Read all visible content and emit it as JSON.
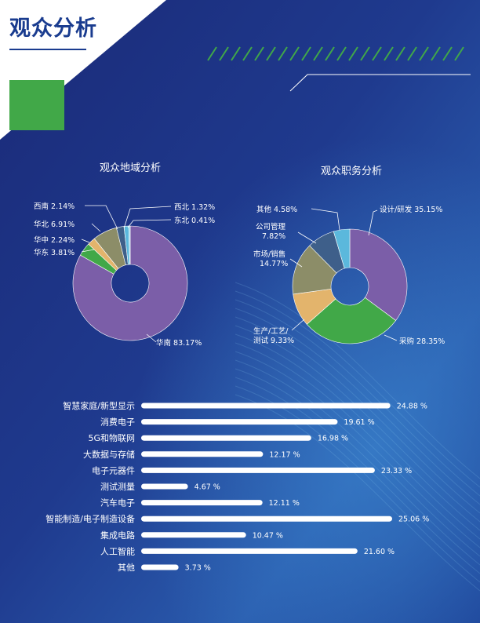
{
  "page_title": "观众分析",
  "colors": {
    "panel_bg": "#1c2d7e",
    "panel_bg_light": "#2b53a6",
    "accent_green": "#41a848",
    "title_blue": "#1a3c8f",
    "bar_fill": "#ffffff",
    "text_light": "#ffffff"
  },
  "chart_data": [
    {
      "type": "pie",
      "title": "观众地域分析",
      "slices": [
        {
          "label": "华南",
          "value": 83.17,
          "display": "83.17%",
          "color": "#7b5ea8"
        },
        {
          "label": "华东",
          "value": 3.81,
          "display": "3.81%",
          "color": "#41a848"
        },
        {
          "label": "华中",
          "value": 2.24,
          "display": "2.24%",
          "color": "#e3b46c"
        },
        {
          "label": "华北",
          "value": 6.91,
          "display": "6.91%",
          "color": "#8c8d68"
        },
        {
          "label": "西南",
          "value": 2.14,
          "display": "2.14%",
          "color": "#3e5f8a"
        },
        {
          "label": "西北",
          "value": 1.32,
          "display": "1.32%",
          "color": "#5bb8dc"
        },
        {
          "label": "东北",
          "value": 0.41,
          "display": "0.41%",
          "color": "#8ccfe4"
        }
      ]
    },
    {
      "type": "pie",
      "title": "观众职务分析",
      "slices": [
        {
          "label": "设计/研发",
          "value": 35.15,
          "display": "35.15%",
          "color": "#7b5ea8"
        },
        {
          "label": "采购",
          "value": 28.35,
          "display": "28.35%",
          "color": "#41a848"
        },
        {
          "label": "生产/工艺/测试",
          "value": 9.33,
          "display": "9.33%",
          "color": "#e3b46c"
        },
        {
          "label": "市场/销售",
          "value": 14.77,
          "display": "14.77%",
          "color": "#8c8d68"
        },
        {
          "label": "公司管理",
          "value": 7.82,
          "display": "7.82%",
          "color": "#3e5f8a"
        },
        {
          "label": "其他",
          "value": 4.58,
          "display": "4.58%",
          "color": "#5bb8dc"
        }
      ]
    },
    {
      "type": "bar",
      "orientation": "horizontal",
      "xlim": [
        0,
        26
      ],
      "categories": [
        "智慧家庭/新型显示",
        "消费电子",
        "5G和物联网",
        "大数据与存储",
        "电子元器件",
        "测试测量",
        "汽车电子",
        "智能制造/电子制造设备",
        "集成电路",
        "人工智能",
        "其他"
      ],
      "values": [
        24.88,
        19.61,
        16.98,
        12.17,
        23.33,
        4.67,
        12.11,
        25.06,
        10.47,
        21.6,
        3.73
      ],
      "value_labels": [
        "24.88 %",
        "19.61 %",
        "16.98 %",
        "12.17 %",
        "23.33 %",
        "4.67 %",
        "12.11 %",
        "25.06 %",
        "10.47 %",
        "21.60 %",
        "3.73 %"
      ]
    }
  ]
}
